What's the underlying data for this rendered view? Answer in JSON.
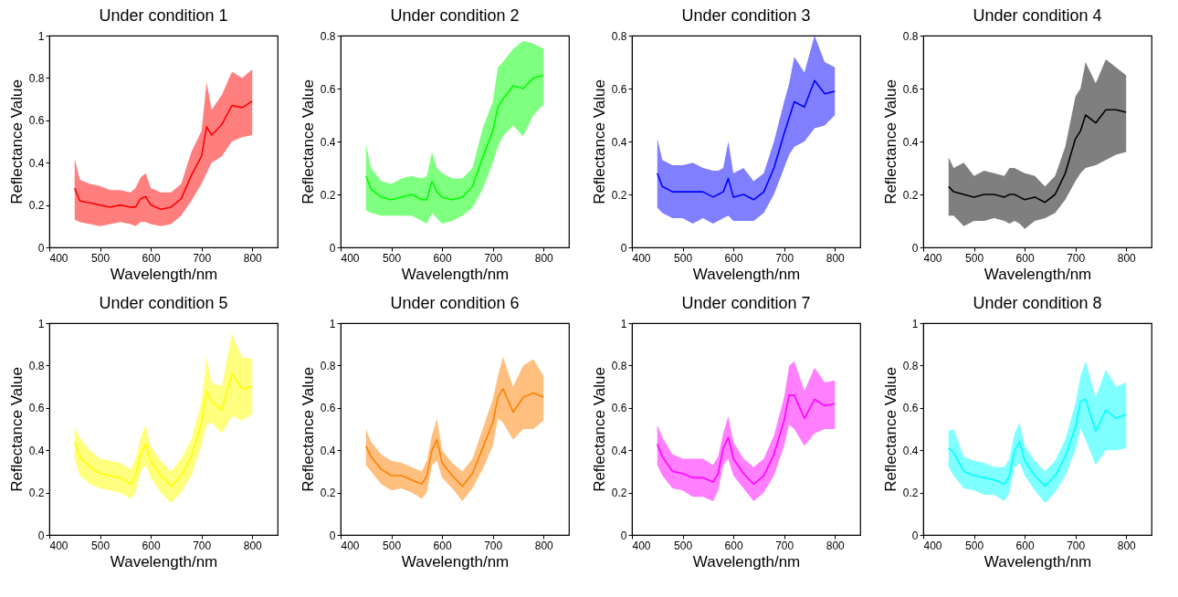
{
  "chart_data": [
    {
      "type": "line",
      "title": "Under condition 1",
      "xlabel": "Wavelength/nm",
      "ylabel": "Reflectance Value",
      "xlim": [
        400,
        850
      ],
      "xticks": [
        400,
        500,
        600,
        700,
        800
      ],
      "ylim": [
        0,
        1
      ],
      "yticks": [
        0,
        0.2,
        0.4,
        0.6,
        0.8,
        1
      ],
      "x": [
        450,
        460,
        480,
        500,
        520,
        540,
        560,
        570,
        580,
        590,
        600,
        620,
        640,
        660,
        680,
        700,
        710,
        720,
        740,
        760,
        780,
        800
      ],
      "series": [
        {
          "color": "#ff0000",
          "values": [
            0.28,
            0.22,
            0.21,
            0.2,
            0.19,
            0.2,
            0.19,
            0.19,
            0.23,
            0.24,
            0.2,
            0.18,
            0.19,
            0.23,
            0.34,
            0.43,
            0.57,
            0.53,
            0.58,
            0.67,
            0.66,
            0.69
          ],
          "lower": [
            0.13,
            0.12,
            0.11,
            0.1,
            0.11,
            0.12,
            0.11,
            0.1,
            0.12,
            0.12,
            0.11,
            0.1,
            0.11,
            0.15,
            0.22,
            0.3,
            0.35,
            0.4,
            0.43,
            0.5,
            0.52,
            0.53
          ],
          "upper": [
            0.42,
            0.32,
            0.3,
            0.29,
            0.27,
            0.27,
            0.26,
            0.28,
            0.33,
            0.35,
            0.28,
            0.26,
            0.26,
            0.3,
            0.45,
            0.55,
            0.78,
            0.65,
            0.72,
            0.83,
            0.8,
            0.84
          ]
        }
      ]
    },
    {
      "type": "line",
      "title": "Under condition 2",
      "xlabel": "Wavelength/nm",
      "ylabel": "Reflectance Value",
      "xlim": [
        400,
        850
      ],
      "xticks": [
        400,
        500,
        600,
        700,
        800
      ],
      "ylim": [
        0,
        0.8
      ],
      "yticks": [
        0,
        0.2,
        0.4,
        0.6,
        0.8
      ],
      "x": [
        450,
        460,
        480,
        500,
        520,
        540,
        560,
        570,
        580,
        590,
        600,
        620,
        640,
        660,
        680,
        700,
        710,
        720,
        740,
        760,
        780,
        800
      ],
      "series": [
        {
          "color": "#00ff00",
          "values": [
            0.27,
            0.22,
            0.19,
            0.18,
            0.19,
            0.2,
            0.18,
            0.18,
            0.25,
            0.21,
            0.19,
            0.18,
            0.19,
            0.23,
            0.34,
            0.44,
            0.53,
            0.56,
            0.61,
            0.6,
            0.64,
            0.65
          ],
          "lower": [
            0.14,
            0.13,
            0.12,
            0.12,
            0.12,
            0.12,
            0.1,
            0.09,
            0.13,
            0.11,
            0.09,
            0.1,
            0.12,
            0.15,
            0.22,
            0.32,
            0.38,
            0.42,
            0.46,
            0.42,
            0.5,
            0.54
          ],
          "upper": [
            0.39,
            0.3,
            0.25,
            0.24,
            0.26,
            0.27,
            0.26,
            0.27,
            0.36,
            0.3,
            0.28,
            0.26,
            0.26,
            0.3,
            0.45,
            0.55,
            0.68,
            0.7,
            0.75,
            0.78,
            0.77,
            0.75
          ]
        }
      ]
    },
    {
      "type": "line",
      "title": "Under condition 3",
      "xlabel": "Wavelength/nm",
      "ylabel": "Reflectance Value",
      "xlim": [
        400,
        850
      ],
      "xticks": [
        400,
        500,
        600,
        700,
        800
      ],
      "ylim": [
        0,
        0.8
      ],
      "yticks": [
        0,
        0.2,
        0.4,
        0.6,
        0.8
      ],
      "x": [
        450,
        460,
        480,
        500,
        520,
        540,
        560,
        570,
        580,
        590,
        600,
        620,
        640,
        660,
        680,
        700,
        710,
        720,
        740,
        760,
        780,
        800
      ],
      "series": [
        {
          "color": "#0000ff",
          "values": [
            0.28,
            0.23,
            0.21,
            0.21,
            0.21,
            0.21,
            0.19,
            0.2,
            0.21,
            0.26,
            0.19,
            0.2,
            0.18,
            0.21,
            0.3,
            0.43,
            0.49,
            0.55,
            0.53,
            0.63,
            0.58,
            0.59
          ],
          "lower": [
            0.15,
            0.13,
            0.11,
            0.11,
            0.09,
            0.11,
            0.09,
            0.1,
            0.11,
            0.12,
            0.1,
            0.1,
            0.1,
            0.13,
            0.2,
            0.3,
            0.35,
            0.38,
            0.4,
            0.45,
            0.46,
            0.5
          ],
          "upper": [
            0.41,
            0.33,
            0.31,
            0.31,
            0.32,
            0.3,
            0.29,
            0.29,
            0.3,
            0.4,
            0.28,
            0.3,
            0.25,
            0.28,
            0.4,
            0.55,
            0.62,
            0.72,
            0.66,
            0.8,
            0.7,
            0.68
          ]
        }
      ]
    },
    {
      "type": "line",
      "title": "Under condition 4",
      "xlabel": "Wavelength/nm",
      "ylabel": "Reflectance Value",
      "xlim": [
        400,
        850
      ],
      "xticks": [
        400,
        500,
        600,
        700,
        800
      ],
      "ylim": [
        0,
        0.8
      ],
      "yticks": [
        0,
        0.2,
        0.4,
        0.6,
        0.8
      ],
      "x": [
        450,
        460,
        480,
        500,
        520,
        540,
        560,
        570,
        580,
        590,
        600,
        620,
        640,
        660,
        680,
        700,
        710,
        720,
        740,
        760,
        780,
        800
      ],
      "series": [
        {
          "color": "#000000",
          "values": [
            0.23,
            0.21,
            0.2,
            0.19,
            0.2,
            0.2,
            0.19,
            0.2,
            0.2,
            0.19,
            0.18,
            0.19,
            0.17,
            0.2,
            0.28,
            0.41,
            0.44,
            0.5,
            0.47,
            0.52,
            0.52,
            0.51
          ],
          "lower": [
            0.12,
            0.12,
            0.08,
            0.1,
            0.1,
            0.11,
            0.1,
            0.09,
            0.1,
            0.09,
            0.07,
            0.1,
            0.11,
            0.13,
            0.18,
            0.25,
            0.28,
            0.3,
            0.31,
            0.33,
            0.35,
            0.36
          ],
          "upper": [
            0.34,
            0.3,
            0.32,
            0.27,
            0.29,
            0.28,
            0.27,
            0.3,
            0.3,
            0.29,
            0.28,
            0.27,
            0.23,
            0.27,
            0.38,
            0.57,
            0.6,
            0.7,
            0.62,
            0.71,
            0.68,
            0.65
          ]
        }
      ]
    },
    {
      "type": "line",
      "title": "Under condition 5",
      "xlabel": "Wavelength/nm",
      "ylabel": "Reflectance Value",
      "xlim": [
        400,
        850
      ],
      "xticks": [
        400,
        500,
        600,
        700,
        800
      ],
      "ylim": [
        0,
        1
      ],
      "yticks": [
        0,
        0.2,
        0.4,
        0.6,
        0.8,
        1
      ],
      "x": [
        450,
        460,
        480,
        500,
        520,
        540,
        560,
        570,
        580,
        590,
        600,
        620,
        640,
        660,
        680,
        700,
        710,
        720,
        740,
        760,
        780,
        800
      ],
      "series": [
        {
          "color": "#ffff00",
          "values": [
            0.44,
            0.37,
            0.32,
            0.29,
            0.28,
            0.27,
            0.24,
            0.28,
            0.38,
            0.43,
            0.35,
            0.28,
            0.23,
            0.28,
            0.37,
            0.53,
            0.68,
            0.63,
            0.59,
            0.76,
            0.69,
            0.7
          ],
          "lower": [
            0.36,
            0.28,
            0.24,
            0.22,
            0.21,
            0.2,
            0.17,
            0.2,
            0.3,
            0.33,
            0.27,
            0.2,
            0.15,
            0.2,
            0.28,
            0.42,
            0.52,
            0.53,
            0.48,
            0.56,
            0.54,
            0.57
          ],
          "upper": [
            0.51,
            0.46,
            0.4,
            0.36,
            0.35,
            0.34,
            0.31,
            0.36,
            0.46,
            0.52,
            0.42,
            0.35,
            0.3,
            0.36,
            0.45,
            0.63,
            0.84,
            0.72,
            0.7,
            0.95,
            0.84,
            0.83
          ]
        }
      ]
    },
    {
      "type": "line",
      "title": "Under condition 6",
      "xlabel": "Wavelength/nm",
      "ylabel": "Reflectance Value",
      "xlim": [
        400,
        850
      ],
      "xticks": [
        400,
        500,
        600,
        700,
        800
      ],
      "ylim": [
        0,
        1
      ],
      "yticks": [
        0,
        0.2,
        0.4,
        0.6,
        0.8,
        1
      ],
      "x": [
        450,
        460,
        480,
        500,
        520,
        540,
        560,
        570,
        580,
        590,
        600,
        620,
        640,
        660,
        680,
        700,
        710,
        720,
        740,
        760,
        780,
        800
      ],
      "series": [
        {
          "color": "#ff8000",
          "values": [
            0.42,
            0.37,
            0.31,
            0.28,
            0.28,
            0.26,
            0.24,
            0.28,
            0.4,
            0.45,
            0.34,
            0.28,
            0.23,
            0.29,
            0.41,
            0.53,
            0.65,
            0.69,
            0.58,
            0.65,
            0.67,
            0.65
          ],
          "lower": [
            0.33,
            0.3,
            0.24,
            0.21,
            0.22,
            0.2,
            0.17,
            0.2,
            0.33,
            0.35,
            0.27,
            0.22,
            0.16,
            0.22,
            0.31,
            0.42,
            0.55,
            0.53,
            0.45,
            0.5,
            0.5,
            0.54
          ],
          "upper": [
            0.5,
            0.44,
            0.38,
            0.35,
            0.34,
            0.32,
            0.3,
            0.35,
            0.47,
            0.55,
            0.4,
            0.34,
            0.3,
            0.36,
            0.5,
            0.64,
            0.75,
            0.84,
            0.7,
            0.8,
            0.83,
            0.75
          ]
        }
      ]
    },
    {
      "type": "line",
      "title": "Under condition 7",
      "xlabel": "Wavelength/nm",
      "ylabel": "Reflectance Value",
      "xlim": [
        400,
        850
      ],
      "xticks": [
        400,
        500,
        600,
        700,
        800
      ],
      "ylim": [
        0,
        1
      ],
      "yticks": [
        0,
        0.2,
        0.4,
        0.6,
        0.8,
        1
      ],
      "x": [
        450,
        460,
        480,
        500,
        520,
        540,
        560,
        570,
        580,
        590,
        600,
        620,
        640,
        660,
        680,
        700,
        710,
        720,
        740,
        760,
        780,
        800
      ],
      "series": [
        {
          "color": "#ff00ff",
          "values": [
            0.43,
            0.37,
            0.3,
            0.29,
            0.27,
            0.27,
            0.25,
            0.29,
            0.41,
            0.46,
            0.36,
            0.29,
            0.24,
            0.28,
            0.38,
            0.54,
            0.66,
            0.66,
            0.55,
            0.64,
            0.61,
            0.62
          ],
          "lower": [
            0.33,
            0.28,
            0.22,
            0.21,
            0.18,
            0.18,
            0.16,
            0.21,
            0.33,
            0.36,
            0.28,
            0.22,
            0.16,
            0.2,
            0.28,
            0.42,
            0.52,
            0.5,
            0.42,
            0.48,
            0.5,
            0.5
          ],
          "upper": [
            0.52,
            0.46,
            0.38,
            0.36,
            0.36,
            0.36,
            0.33,
            0.37,
            0.48,
            0.56,
            0.44,
            0.36,
            0.32,
            0.36,
            0.47,
            0.65,
            0.8,
            0.82,
            0.68,
            0.79,
            0.72,
            0.73
          ]
        }
      ]
    },
    {
      "type": "line",
      "title": "Under condition 8",
      "xlabel": "Wavelength/nm",
      "ylabel": "Reflectance Value",
      "xlim": [
        400,
        850
      ],
      "xticks": [
        400,
        500,
        600,
        700,
        800
      ],
      "ylim": [
        0,
        1
      ],
      "yticks": [
        0,
        0.2,
        0.4,
        0.6,
        0.8,
        1
      ],
      "x": [
        450,
        460,
        480,
        500,
        520,
        540,
        560,
        570,
        580,
        590,
        600,
        620,
        640,
        660,
        680,
        700,
        710,
        720,
        740,
        760,
        780,
        800
      ],
      "series": [
        {
          "color": "#00ffff",
          "values": [
            0.41,
            0.39,
            0.3,
            0.28,
            0.27,
            0.26,
            0.24,
            0.28,
            0.4,
            0.44,
            0.35,
            0.28,
            0.23,
            0.28,
            0.37,
            0.51,
            0.63,
            0.64,
            0.49,
            0.59,
            0.55,
            0.57
          ],
          "lower": [
            0.32,
            0.28,
            0.22,
            0.21,
            0.19,
            0.19,
            0.16,
            0.2,
            0.32,
            0.34,
            0.28,
            0.21,
            0.15,
            0.2,
            0.28,
            0.4,
            0.5,
            0.45,
            0.33,
            0.4,
            0.4,
            0.41
          ],
          "upper": [
            0.49,
            0.5,
            0.37,
            0.35,
            0.34,
            0.32,
            0.32,
            0.36,
            0.48,
            0.53,
            0.42,
            0.35,
            0.3,
            0.35,
            0.45,
            0.62,
            0.75,
            0.82,
            0.65,
            0.78,
            0.7,
            0.72
          ]
        }
      ]
    }
  ]
}
